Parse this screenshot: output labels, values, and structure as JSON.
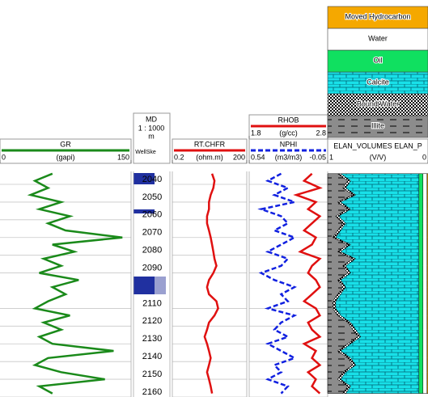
{
  "depth_track": {
    "title": "MD",
    "scale": "1 : 1000",
    "unit": "m",
    "label": "WellSke",
    "ylim": [
      2032.7,
      2160
    ],
    "yticks": [
      2040,
      2050,
      2060,
      2070,
      2080,
      2090,
      2110,
      2120,
      2130,
      2140,
      2150,
      2160
    ]
  },
  "chart_data": [
    {
      "type": "line",
      "unit": "(gapi)",
      "xlim": [
        0,
        150
      ],
      "xticks": [
        0,
        150
      ],
      "x": [
        2034,
        2038,
        2042,
        2046,
        2050,
        2054,
        2058,
        2062,
        2066,
        2070,
        2074,
        2078,
        2082,
        2086,
        2090,
        2094,
        2098,
        2102,
        2106,
        2110,
        2114,
        2118,
        2122,
        2126,
        2130,
        2134,
        2138,
        2142,
        2146,
        2150,
        2154,
        2158
      ],
      "series": [
        {
          "name": "GR",
          "color": "#1a8a1a",
          "values": [
            60,
            40,
            55,
            35,
            70,
            45,
            80,
            55,
            75,
            140,
            60,
            85,
            50,
            70,
            45,
            90,
            60,
            75,
            55,
            40,
            80,
            50,
            70,
            45,
            60,
            130,
            55,
            40,
            70,
            120,
            45,
            60
          ]
        }
      ]
    },
    {
      "type": "line",
      "unit": "(ohm.m)",
      "log": true,
      "xlim": [
        0.2,
        200
      ],
      "xticks": [
        0.2,
        200
      ],
      "x": [
        2034,
        2038,
        2042,
        2046,
        2050,
        2054,
        2058,
        2062,
        2066,
        2070,
        2074,
        2078,
        2082,
        2086,
        2090,
        2094,
        2098,
        2102,
        2106,
        2110,
        2114,
        2118,
        2122,
        2126,
        2130,
        2134,
        2138,
        2142,
        2146,
        2150,
        2154,
        2158
      ],
      "series": [
        {
          "name": "RT.CHFR",
          "color": "#e01010",
          "values": [
            8,
            10,
            9,
            7,
            6,
            6,
            5,
            5,
            6,
            7,
            8,
            9,
            10,
            12,
            9,
            6,
            5,
            6,
            12,
            14,
            10,
            6,
            5,
            4,
            5,
            6,
            7,
            6,
            5,
            6,
            7,
            8
          ]
        }
      ]
    },
    {
      "type": "line",
      "unit": "(g/cc)",
      "xlim": [
        1.8,
        2.8
      ],
      "xticks": [
        1.8,
        2.8
      ],
      "x": [
        2034,
        2038,
        2042,
        2046,
        2050,
        2054,
        2058,
        2062,
        2066,
        2070,
        2074,
        2078,
        2082,
        2086,
        2090,
        2094,
        2098,
        2102,
        2106,
        2110,
        2114,
        2118,
        2122,
        2126,
        2130,
        2134,
        2138,
        2142,
        2146,
        2150,
        2154,
        2158
      ],
      "series": [
        {
          "name": "RHOB",
          "color": "#e01010",
          "values": [
            2.6,
            2.5,
            2.7,
            2.4,
            2.65,
            2.55,
            2.7,
            2.6,
            2.5,
            2.65,
            2.6,
            2.45,
            2.7,
            2.6,
            2.55,
            2.65,
            2.7,
            2.6,
            2.5,
            2.65,
            2.7,
            2.55,
            2.6,
            2.7,
            2.5,
            2.65,
            2.6,
            2.7,
            2.55,
            2.65,
            2.6,
            2.7
          ]
        }
      ]
    },
    {
      "type": "line",
      "unit": "(m3/m3)",
      "dash": true,
      "xlim": [
        0.54,
        -0.05
      ],
      "xticks": [
        0.54,
        -0.05
      ],
      "x": [
        2034,
        2038,
        2042,
        2046,
        2050,
        2054,
        2058,
        2062,
        2066,
        2070,
        2074,
        2078,
        2082,
        2086,
        2090,
        2094,
        2098,
        2102,
        2106,
        2110,
        2114,
        2118,
        2122,
        2126,
        2130,
        2134,
        2138,
        2142,
        2146,
        2150,
        2154,
        2158
      ],
      "series": [
        {
          "name": "NPHI",
          "color": "#1020e0",
          "values": [
            0.3,
            0.4,
            0.25,
            0.35,
            0.2,
            0.45,
            0.3,
            0.25,
            0.35,
            0.2,
            0.3,
            0.4,
            0.25,
            0.3,
            0.45,
            0.35,
            0.2,
            0.3,
            0.25,
            0.4,
            0.2,
            0.3,
            0.35,
            0.25,
            0.4,
            0.3,
            0.2,
            0.35,
            0.3,
            0.4,
            0.25,
            0.3
          ]
        }
      ]
    },
    {
      "type": "stacked-area",
      "title": "ELAN_VOLUMES ELAN_P",
      "unit": "(V/V)",
      "xlim": [
        1,
        0
      ],
      "xticks": [
        1,
        0
      ],
      "x": [
        2034,
        2038,
        2042,
        2046,
        2050,
        2054,
        2058,
        2062,
        2066,
        2070,
        2074,
        2078,
        2082,
        2086,
        2090,
        2094,
        2098,
        2102,
        2106,
        2110,
        2114,
        2118,
        2122,
        2126,
        2130,
        2134,
        2138,
        2142,
        2146,
        2150,
        2154,
        2158
      ],
      "series": [
        {
          "name": "Illite",
          "color": "#8c8c8c",
          "pattern": "dash",
          "values": [
            0.1,
            0.2,
            0.15,
            0.25,
            0.1,
            0.2,
            0.08,
            0.15,
            0.1,
            0.05,
            0.2,
            0.1,
            0.25,
            0.15,
            0.2,
            0.1,
            0.15,
            0.1,
            0.05,
            0.05,
            0.1,
            0.2,
            0.25,
            0.3,
            0.2,
            0.1,
            0.2,
            0.25,
            0.15,
            0.1,
            0.2,
            0.15
          ]
        },
        {
          "name": "Bound Water",
          "color": "#ffffff",
          "pattern": "checker",
          "values": [
            0.03,
            0.03,
            0.03,
            0.03,
            0.03,
            0.03,
            0.03,
            0.03,
            0.03,
            0.03,
            0.03,
            0.03,
            0.03,
            0.03,
            0.03,
            0.03,
            0.03,
            0.03,
            0.03,
            0.03,
            0.03,
            0.03,
            0.03,
            0.03,
            0.03,
            0.03,
            0.03,
            0.03,
            0.03,
            0.03,
            0.03,
            0.03
          ]
        },
        {
          "name": "Calcite",
          "color": "#18e0e8",
          "pattern": "brick",
          "values": [
            0.78,
            0.68,
            0.73,
            0.63,
            0.78,
            0.68,
            0.8,
            0.73,
            0.78,
            0.83,
            0.68,
            0.78,
            0.63,
            0.73,
            0.68,
            0.78,
            0.73,
            0.78,
            0.83,
            0.83,
            0.78,
            0.68,
            0.63,
            0.58,
            0.68,
            0.78,
            0.68,
            0.63,
            0.73,
            0.78,
            0.68,
            0.73
          ]
        },
        {
          "name": "Oil",
          "color": "#10e060",
          "values": [
            0.04,
            0.04,
            0.04,
            0.04,
            0.04,
            0.04,
            0.04,
            0.04,
            0.04,
            0.04,
            0.04,
            0.04,
            0.04,
            0.04,
            0.04,
            0.04,
            0.04,
            0.04,
            0.04,
            0.04,
            0.04,
            0.04,
            0.04,
            0.04,
            0.04,
            0.04,
            0.04,
            0.04,
            0.04,
            0.04,
            0.04,
            0.04
          ]
        },
        {
          "name": "Water",
          "color": "#ffffff",
          "values": [
            0.04,
            0.04,
            0.04,
            0.04,
            0.04,
            0.04,
            0.04,
            0.04,
            0.04,
            0.04,
            0.04,
            0.04,
            0.04,
            0.04,
            0.04,
            0.04,
            0.04,
            0.04,
            0.04,
            0.04,
            0.04,
            0.04,
            0.04,
            0.04,
            0.04,
            0.04,
            0.04,
            0.04,
            0.04,
            0.04,
            0.04,
            0.04
          ]
        },
        {
          "name": "Moved Hydrocarbon",
          "color": "#f5a800",
          "values": [
            0.01,
            0.01,
            0.01,
            0.01,
            0.01,
            0.01,
            0.01,
            0.01,
            0.01,
            0.01,
            0.01,
            0.01,
            0.01,
            0.01,
            0.01,
            0.01,
            0.01,
            0.01,
            0.01,
            0.01,
            0.01,
            0.01,
            0.01,
            0.01,
            0.01,
            0.01,
            0.01,
            0.01,
            0.01,
            0.01,
            0.01,
            0.01
          ]
        }
      ]
    }
  ]
}
